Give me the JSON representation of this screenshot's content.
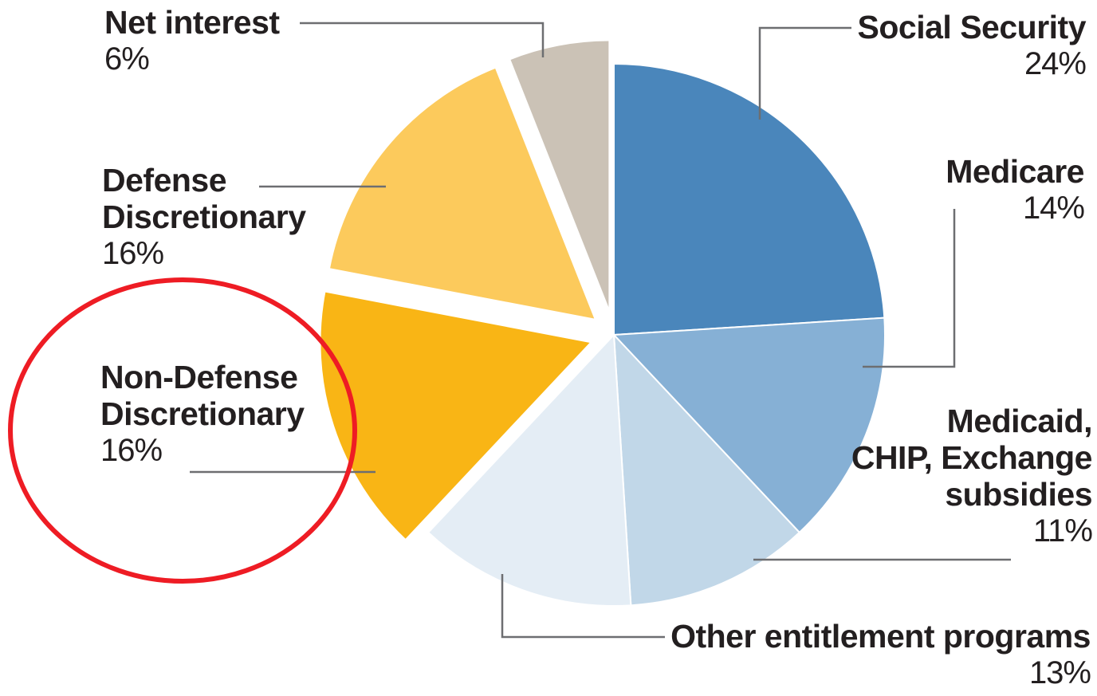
{
  "chart_data": {
    "type": "pie",
    "title": "",
    "slices": [
      {
        "label": "Social Security",
        "pct_text": "24%",
        "value": 24,
        "color": "#4a86bb",
        "exploded": false
      },
      {
        "label": "Medicare",
        "pct_text": "14%",
        "value": 14,
        "color": "#86b0d5",
        "exploded": false
      },
      {
        "label": "Medicaid, CHIP, Exchange subsidies",
        "pct_text": "11%",
        "value": 11,
        "color": "#c1d7e8",
        "exploded": false
      },
      {
        "label": "Other entitlement programs",
        "pct_text": "13%",
        "value": 13,
        "color": "#e4edf5",
        "exploded": false
      },
      {
        "label": "Non-Defense Discretionary",
        "pct_text": "16%",
        "value": 16,
        "color": "#f9b515",
        "exploded": true
      },
      {
        "label": "Defense Discretionary",
        "pct_text": "16%",
        "value": 16,
        "color": "#fcca5c",
        "exploded": true
      },
      {
        "label": "Net interest",
        "pct_text": "6%",
        "value": 6,
        "color": "#cbc2b6",
        "exploded": true
      }
    ],
    "annotation": {
      "shape": "ellipse",
      "color": "#ee1c24",
      "target": "Non-Defense Discretionary"
    }
  },
  "labels": {
    "social_security": {
      "name": "Social Security",
      "pct": "24%"
    },
    "medicare": {
      "name": "Medicare",
      "pct": "14%"
    },
    "medicaid_line1": "Medicaid,",
    "medicaid_line2": "CHIP, Exchange",
    "medicaid_line3": "subsidies",
    "medicaid_pct": "11%",
    "other": {
      "name": "Other entitlement programs",
      "pct": "13%"
    },
    "nondefense_line1": "Non-Defense",
    "nondefense_line2": "Discretionary",
    "nondefense_pct": "16%",
    "defense_line1": "Defense",
    "defense_line2": "Discretionary",
    "defense_pct": "16%",
    "net_interest": {
      "name": "Net interest",
      "pct": "6%"
    }
  }
}
